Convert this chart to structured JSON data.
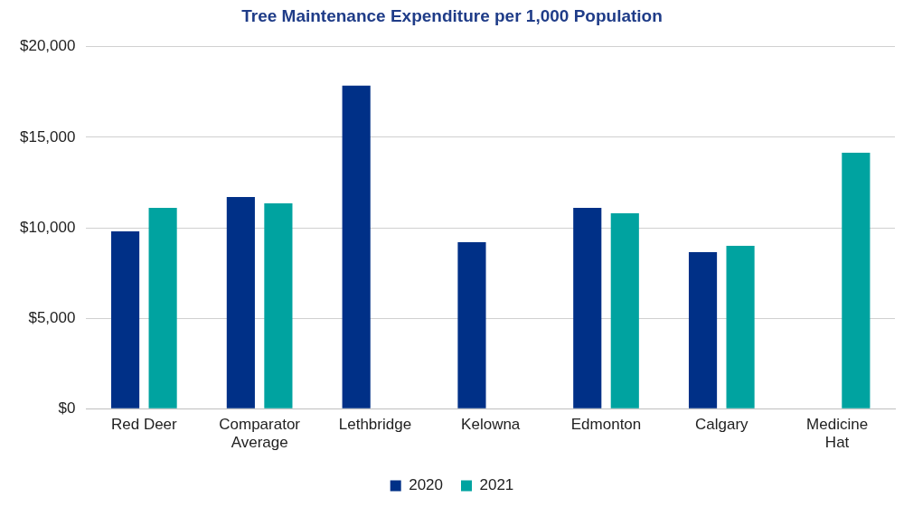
{
  "chart_data": {
    "type": "bar",
    "title": "Tree Maintenance Expenditure per 1,000 Population",
    "categories": [
      "Red Deer",
      "Comparator Average",
      "Lethbridge",
      "Kelowna",
      "Edmonton",
      "Calgary",
      "Medicine Hat"
    ],
    "series": [
      {
        "name": "2020",
        "color": "#003087",
        "values": [
          9800,
          11700,
          17850,
          9200,
          11100,
          8650,
          null
        ]
      },
      {
        "name": "2021",
        "color": "#00a3a0",
        "values": [
          11100,
          11350,
          null,
          null,
          10800,
          9000,
          14150
        ]
      }
    ],
    "ylim": [
      0,
      20000
    ],
    "yticks": [
      {
        "value": 0,
        "label": "$0"
      },
      {
        "value": 5000,
        "label": "$5,000"
      },
      {
        "value": 10000,
        "label": "$10,000"
      },
      {
        "value": 15000,
        "label": "$15,000"
      },
      {
        "value": 20000,
        "label": "$20,000"
      }
    ],
    "grid": "y",
    "legend": "bottom"
  }
}
